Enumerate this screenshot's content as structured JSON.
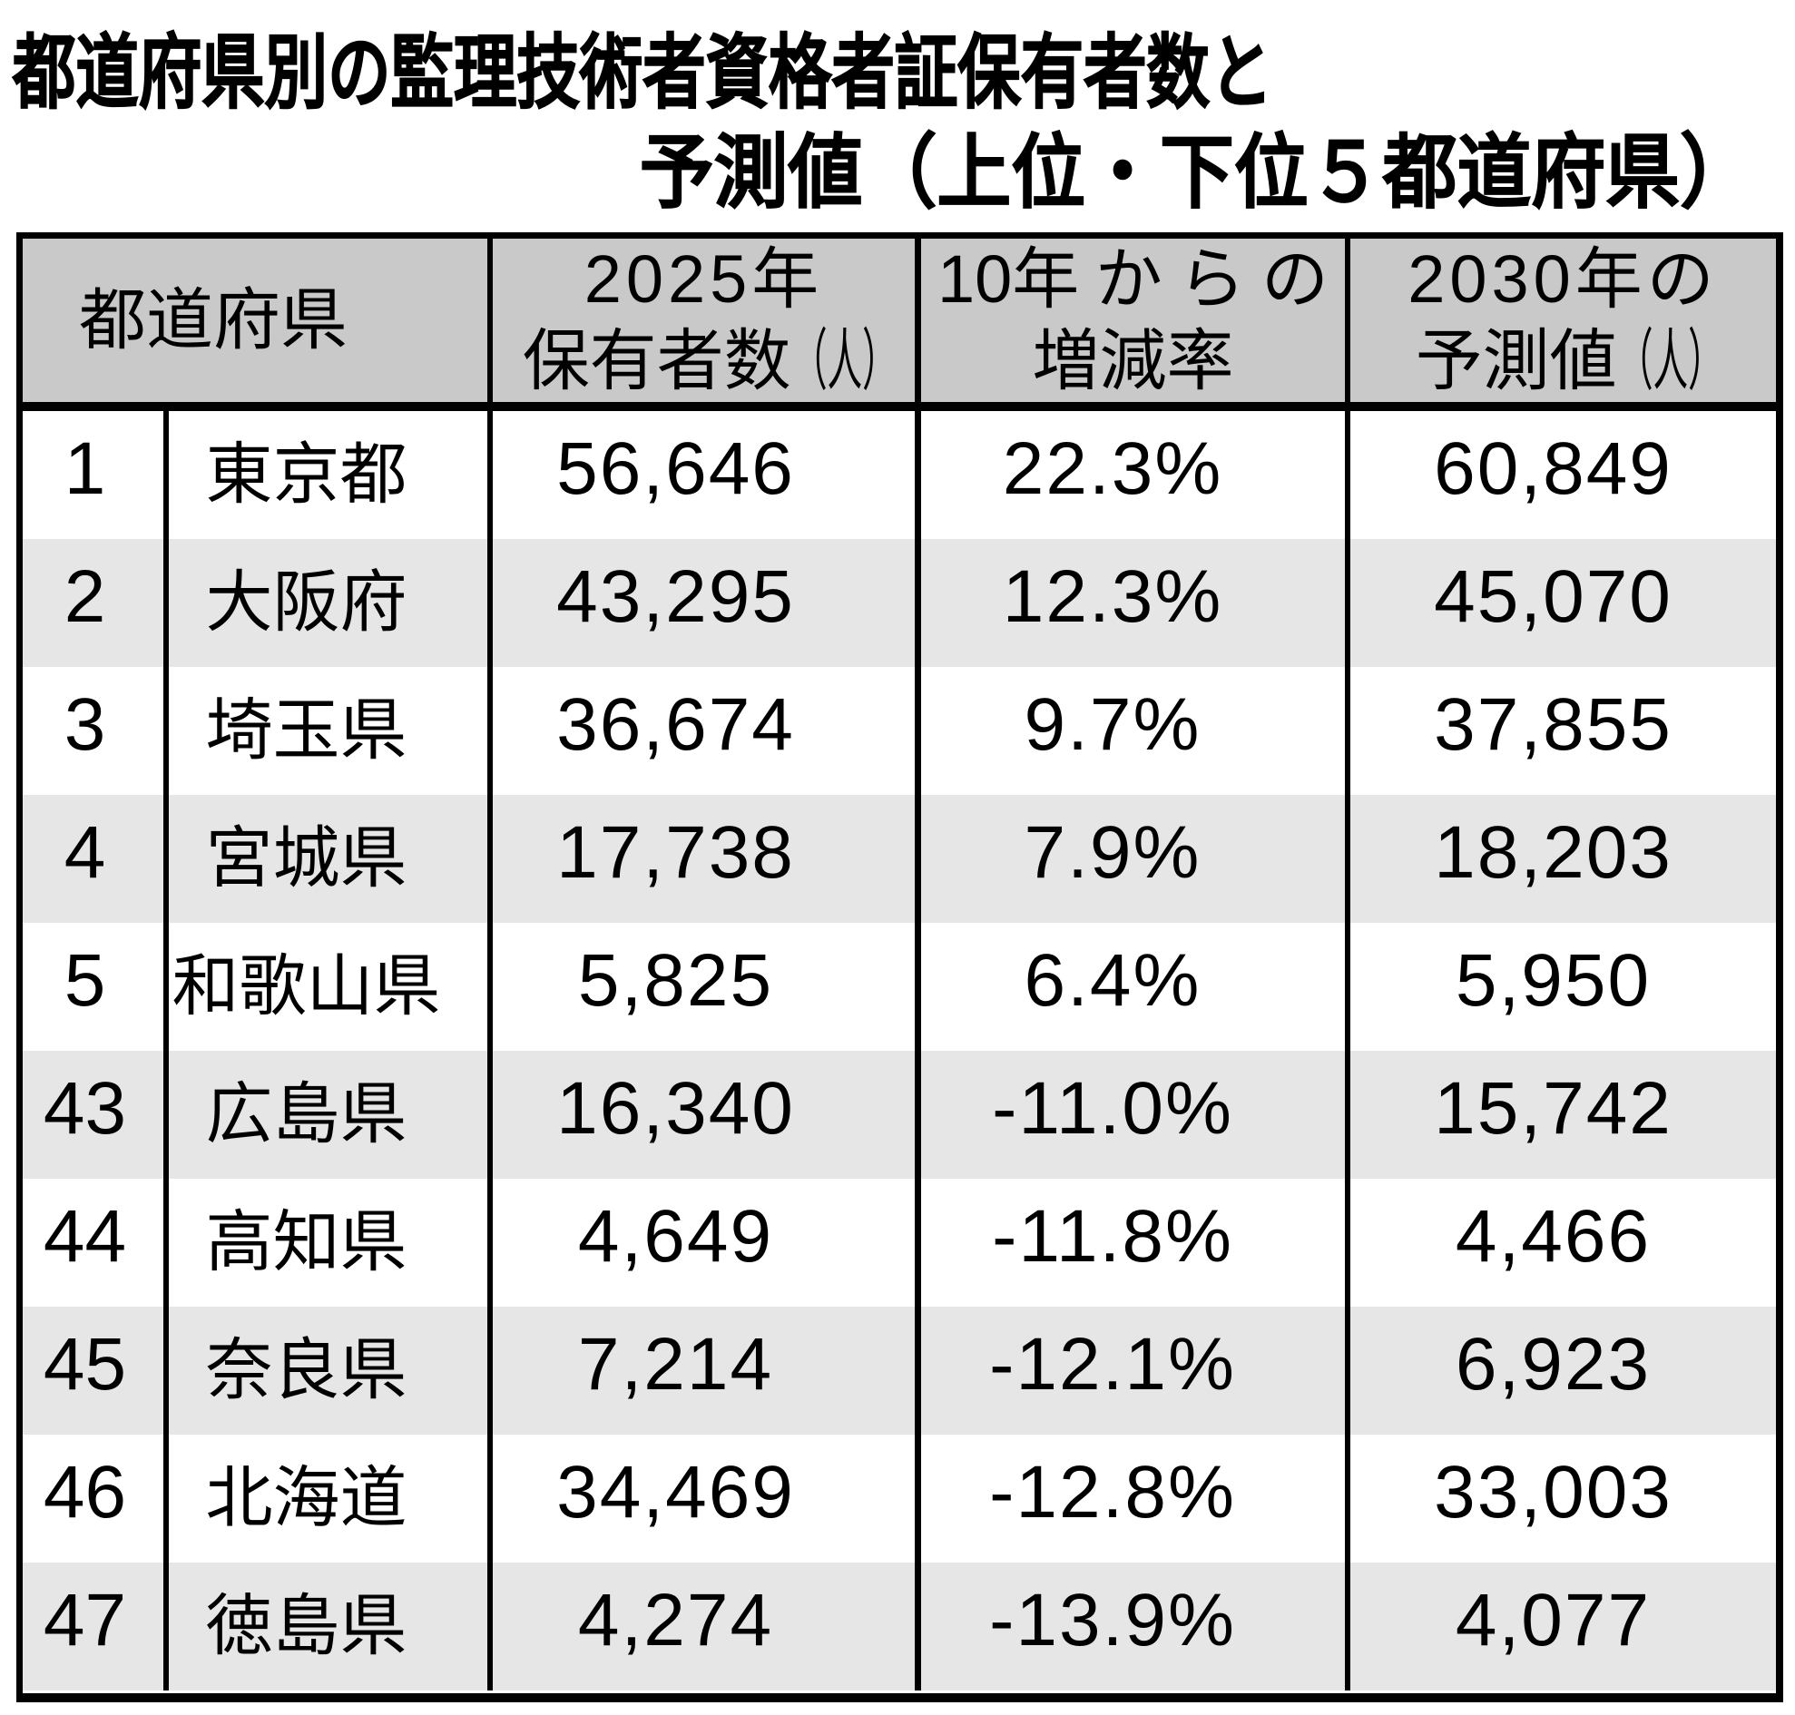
{
  "title": {
    "line1": "都道府県別の監理技術者資格者証保有者数と",
    "line2": "予測値（上位・下位５都道府県）"
  },
  "table": {
    "header": {
      "prefecture": "都道府県",
      "col2_line1": "2025年",
      "col2_line2_main": "保有者数",
      "col2_line2_unit": "（人）",
      "col3_line1_chars": [
        "10年",
        "か",
        "ら",
        "の"
      ],
      "col3_line2": "増減率",
      "col4_line1": "2030年の",
      "col4_line2_main": "予測値",
      "col4_line2_unit": "（人）"
    }
  },
  "colors": {
    "header_bg": "#c9c9c9",
    "row_alt_bg": "#e6e6e6",
    "border": "#000000"
  },
  "chart_data": {
    "type": "table",
    "title": "都道府県別の監理技術者資格者証保有者数と予測値（上位・下位５都道府県）",
    "columns": [
      "都道府県",
      "2025年保有者数（人）",
      "10年からの増減率",
      "2030年の予測値（人）"
    ],
    "rows": [
      {
        "rank": "1",
        "prefecture": "東京都",
        "holders_2025": "56,646",
        "change_rate": "22.3%",
        "forecast_2030": "60,849"
      },
      {
        "rank": "2",
        "prefecture": "大阪府",
        "holders_2025": "43,295",
        "change_rate": "12.3%",
        "forecast_2030": "45,070"
      },
      {
        "rank": "3",
        "prefecture": "埼玉県",
        "holders_2025": "36,674",
        "change_rate": "9.7%",
        "forecast_2030": "37,855"
      },
      {
        "rank": "4",
        "prefecture": "宮城県",
        "holders_2025": "17,738",
        "change_rate": "7.9%",
        "forecast_2030": "18,203"
      },
      {
        "rank": "5",
        "prefecture": "和歌山県",
        "holders_2025": "5,825",
        "change_rate": "6.4%",
        "forecast_2030": "5,950"
      },
      {
        "rank": "43",
        "prefecture": "広島県",
        "holders_2025": "16,340",
        "change_rate": "-11.0%",
        "forecast_2030": "15,742"
      },
      {
        "rank": "44",
        "prefecture": "高知県",
        "holders_2025": "4,649",
        "change_rate": "-11.8%",
        "forecast_2030": "4,466"
      },
      {
        "rank": "45",
        "prefecture": "奈良県",
        "holders_2025": "7,214",
        "change_rate": "-12.1%",
        "forecast_2030": "6,923"
      },
      {
        "rank": "46",
        "prefecture": "北海道",
        "holders_2025": "34,469",
        "change_rate": "-12.8%",
        "forecast_2030": "33,003"
      },
      {
        "rank": "47",
        "prefecture": "徳島県",
        "holders_2025": "4,274",
        "change_rate": "-13.9%",
        "forecast_2030": "4,077"
      }
    ]
  }
}
